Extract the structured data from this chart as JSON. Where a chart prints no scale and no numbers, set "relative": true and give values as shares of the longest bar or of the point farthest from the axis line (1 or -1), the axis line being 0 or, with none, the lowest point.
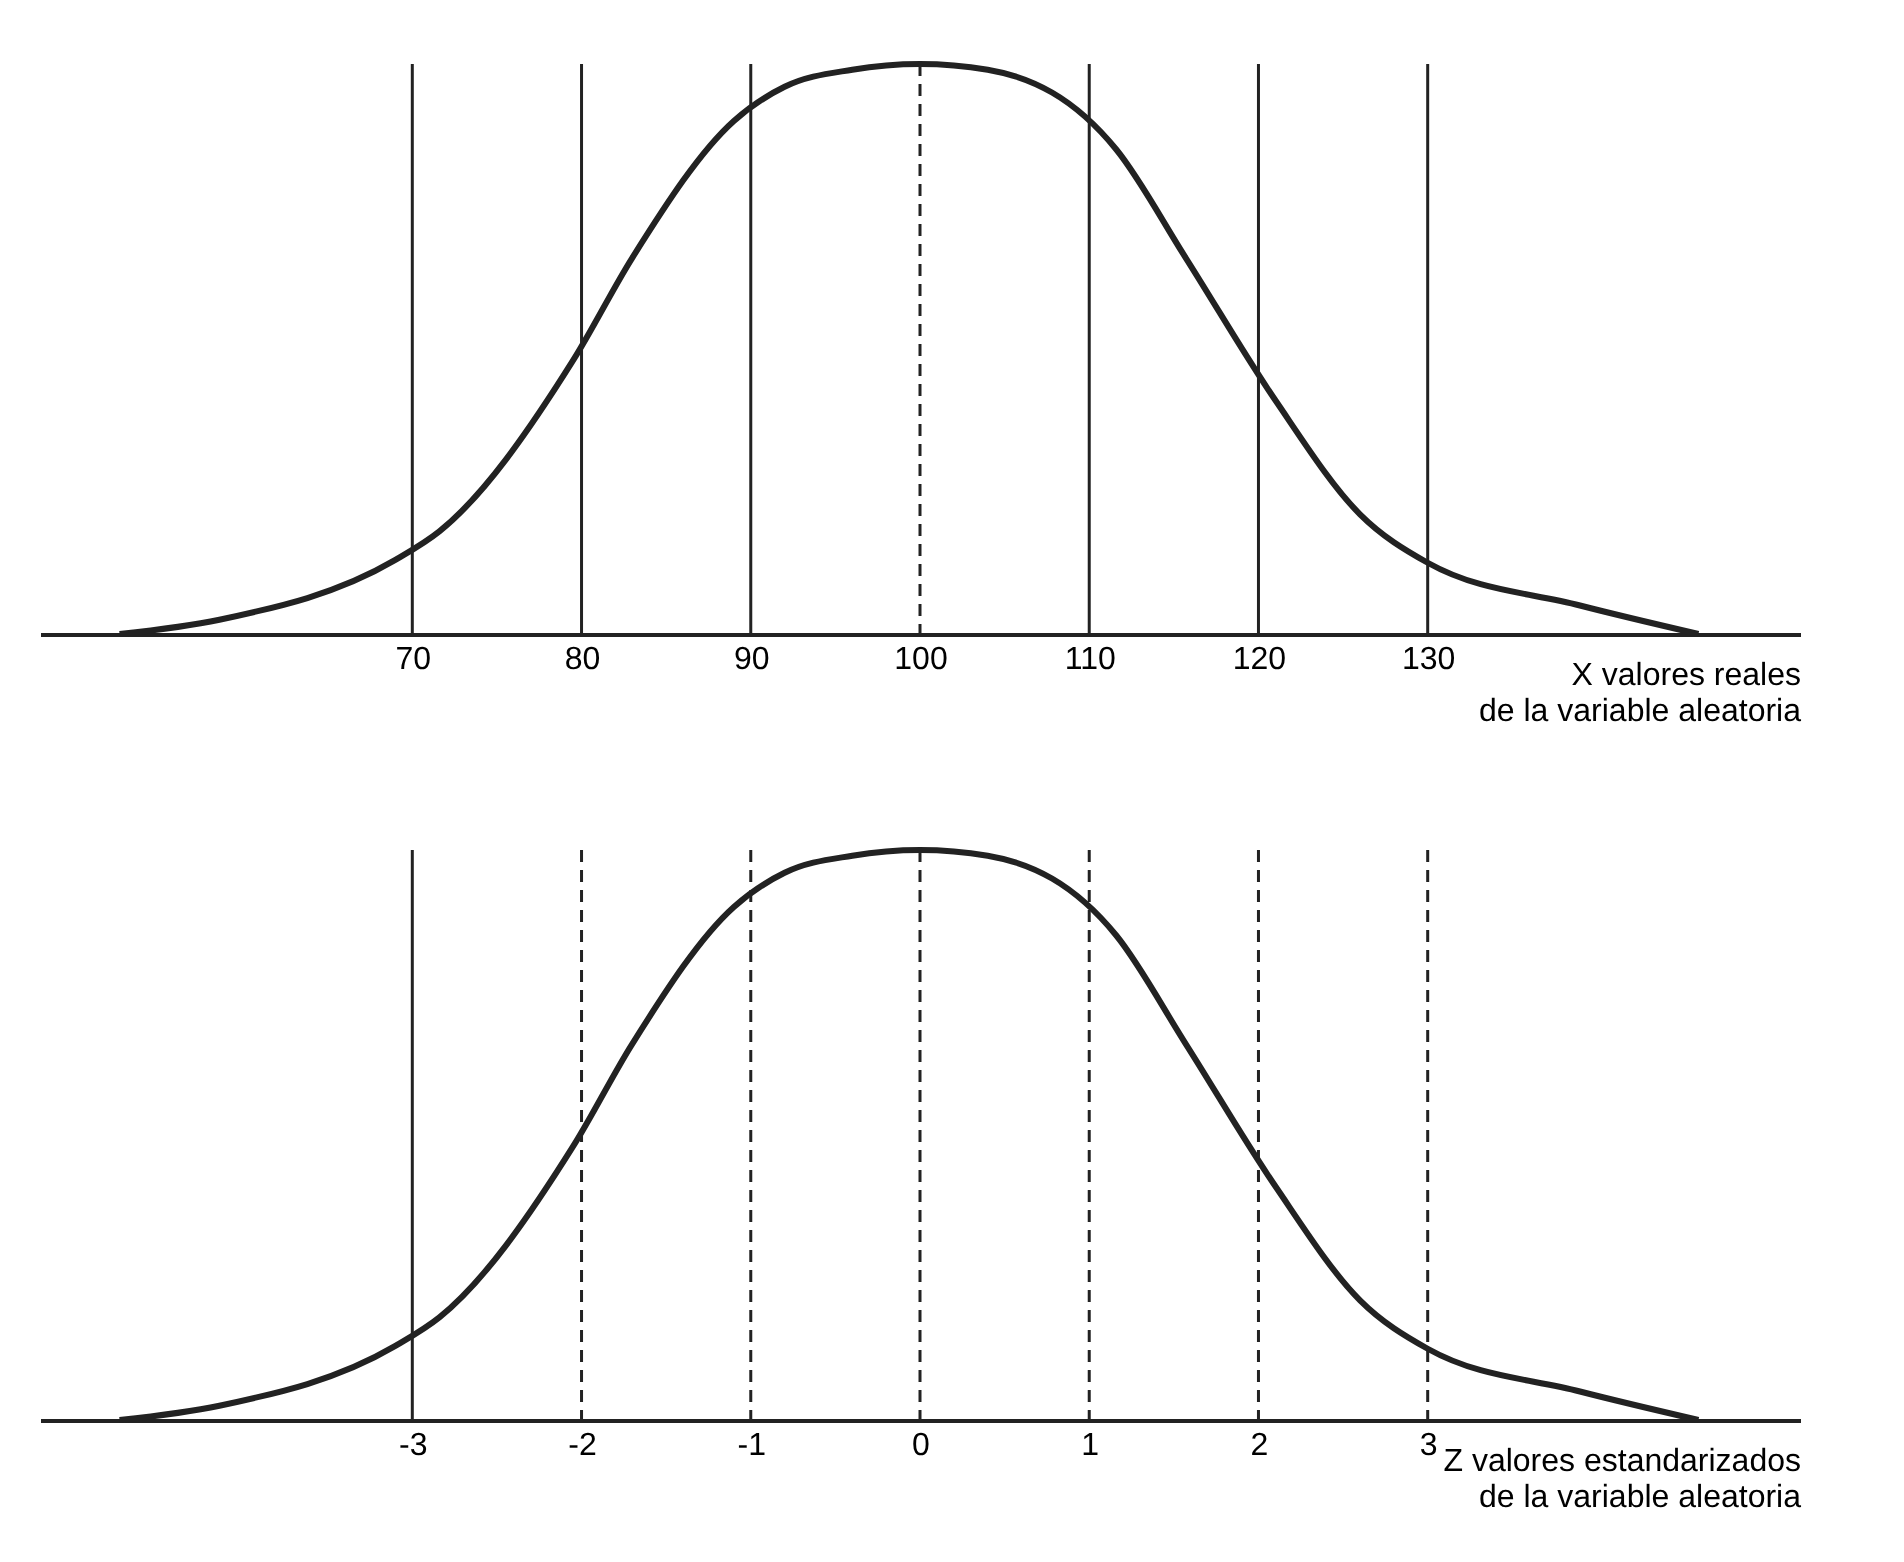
{
  "chart_data": [
    {
      "type": "line",
      "relative": true,
      "xlabel": "X valores reales\nde la variable aleatoria",
      "xlim": [
        48,
        152
      ],
      "xticks": [
        70,
        80,
        90,
        100,
        110,
        120,
        130
      ],
      "grid": false,
      "marker": "none",
      "line_style": "solid",
      "series": [
        {
          "color": "#222222",
          "x": [
            52.7,
            58.6,
            69,
            71.6,
            79.5,
            83,
            89,
            92,
            96,
            100,
            104,
            111.6,
            115.7,
            121,
            126,
            130,
            139,
            146
          ],
          "values": [
            0,
            0.025,
            0.13,
            0.18,
            0.48,
            0.66,
            0.9,
            0.96,
            0.99,
            1,
            0.99,
            0.85,
            0.66,
            0.41,
            0.21,
            0.125,
            0.05,
            0
          ]
        }
      ],
      "ref_lines": [
        {
          "axis": "x",
          "value": 70,
          "line_style": "solid"
        },
        {
          "axis": "x",
          "value": 80,
          "line_style": "solid"
        },
        {
          "axis": "x",
          "value": 90,
          "line_style": "solid"
        },
        {
          "axis": "x",
          "value": 100,
          "line_style": "dashed"
        },
        {
          "axis": "x",
          "value": 110,
          "line_style": "solid"
        },
        {
          "axis": "x",
          "value": 120,
          "line_style": "solid"
        },
        {
          "axis": "x",
          "value": 130,
          "line_style": "solid"
        }
      ]
    },
    {
      "type": "line",
      "relative": true,
      "xlabel": "Z valores estandarizados\nde la variable aleatoria",
      "xlim": [
        -5.2,
        5.2
      ],
      "xticks": [
        -3,
        -2,
        -1,
        0,
        1,
        2,
        3
      ],
      "grid": false,
      "marker": "none",
      "line_style": "solid",
      "series": [
        {
          "color": "#222222",
          "x": [
            -4.73,
            -4.14,
            -3.1,
            -2.84,
            -2.05,
            -1.7,
            -1.1,
            -0.8,
            -0.4,
            0,
            0.4,
            1.16,
            1.57,
            2.1,
            2.6,
            3,
            3.9,
            4.6
          ],
          "values": [
            0,
            0.025,
            0.13,
            0.18,
            0.48,
            0.66,
            0.9,
            0.96,
            0.99,
            1,
            0.99,
            0.85,
            0.66,
            0.41,
            0.21,
            0.125,
            0.05,
            0
          ]
        }
      ],
      "ref_lines": [
        {
          "axis": "x",
          "value": -3,
          "line_style": "solid"
        },
        {
          "axis": "x",
          "value": -2,
          "line_style": "dashed"
        },
        {
          "axis": "x",
          "value": -1,
          "line_style": "dashed"
        },
        {
          "axis": "x",
          "value": 0,
          "line_style": "dashed"
        },
        {
          "axis": "x",
          "value": 1,
          "line_style": "dashed"
        },
        {
          "axis": "x",
          "value": 2,
          "line_style": "dashed"
        },
        {
          "axis": "x",
          "value": 3,
          "line_style": "dashed"
        }
      ]
    }
  ]
}
